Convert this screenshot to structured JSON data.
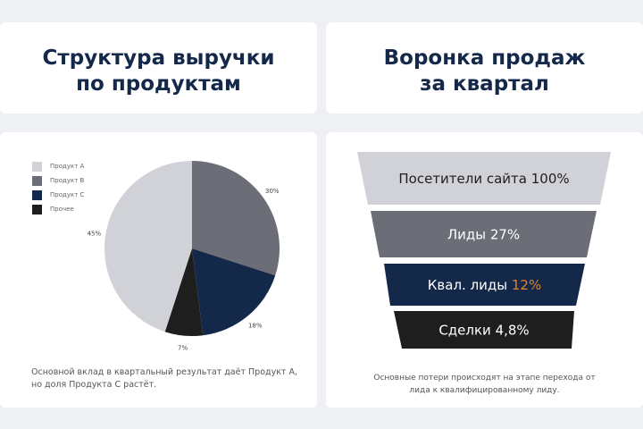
{
  "left": {
    "title_line1": "Структура выручки",
    "title_line2": "по продуктам",
    "caption_line1": "Основной вклад в квартальный результат даёт Продукт А,",
    "caption_line2": "но доля Продукта С растёт."
  },
  "right": {
    "title_line1": "Воронка продаж",
    "title_line2": "за квартал",
    "caption_line1": "Основные потери происходят на этапе перехода от",
    "caption_line2": "лида к квалифицированному лиду."
  },
  "chart_data": [
    {
      "type": "pie",
      "legend_position": "top-left",
      "categories": [
        "Продукт А",
        "Продукт В",
        "Продукт С",
        "Прочее"
      ],
      "values": [
        45,
        30,
        18,
        7
      ],
      "labels": [
        "45%",
        "30%",
        "18%",
        "7%"
      ],
      "colors": [
        "#d0d2d8",
        "#6b6e76",
        "#14284a",
        "#1e1e1e"
      ]
    },
    {
      "type": "funnel",
      "stages": [
        {
          "label": "Посетители сайта",
          "value_label": "100%",
          "value": 100,
          "color": "#d0d2d8",
          "text_color": "#1e1e1e",
          "value_color": "#1e1e1e"
        },
        {
          "label": "Лиды",
          "value_label": "27%",
          "value": 27,
          "color": "#6b6e76",
          "text_color": "#ffffff",
          "value_color": "#ffffff"
        },
        {
          "label": "Квал. лиды",
          "value_label": "12%",
          "value": 12,
          "color": "#14284a",
          "text_color": "#ffffff",
          "value_color": "#e0832a"
        },
        {
          "label": "Сделки",
          "value_label": "4,8%",
          "value": 4.8,
          "color": "#1e1e1e",
          "text_color": "#ffffff",
          "value_color": "#ffffff"
        }
      ]
    }
  ]
}
